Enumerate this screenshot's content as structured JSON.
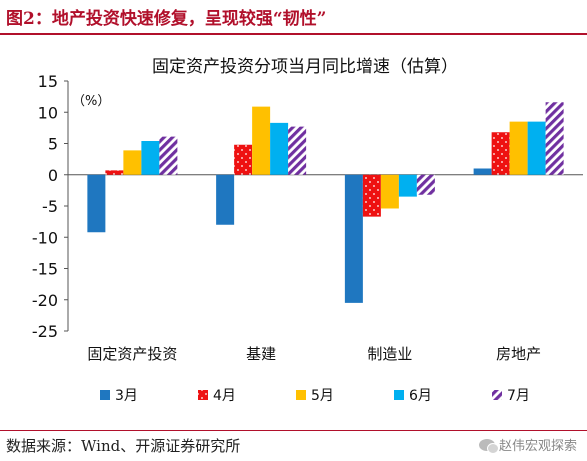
{
  "figure": {
    "title": "图2：地产投资快速修复，呈现较强“韧性”",
    "source": "数据来源：Wind、开源证券研究所",
    "watermark": "赵伟宏观探索",
    "accent_color": "#b1102b"
  },
  "chart_data": {
    "type": "bar",
    "title": "固定资产投资分项当月同比增速（估算）",
    "unit_label": "（%）",
    "categories": [
      "固定资产投资",
      "基建",
      "制造业",
      "房地产"
    ],
    "series": [
      {
        "name": "3月",
        "color": "#1f77c0",
        "pattern": "solid",
        "values": [
          -9.2,
          -8.0,
          -20.5,
          1.0
        ]
      },
      {
        "name": "4月",
        "color": "#ee1111",
        "pattern": "dots",
        "values": [
          0.7,
          4.8,
          -6.7,
          6.8
        ]
      },
      {
        "name": "5月",
        "color": "#ffc000",
        "pattern": "solid",
        "values": [
          3.9,
          10.9,
          -5.4,
          8.5
        ]
      },
      {
        "name": "6月",
        "color": "#00b0f0",
        "pattern": "solid",
        "values": [
          5.4,
          8.3,
          -3.5,
          8.5
        ]
      },
      {
        "name": "7月",
        "color": "#7030a0",
        "pattern": "diagonal-stripes",
        "values": [
          6.1,
          7.7,
          -3.2,
          11.6
        ]
      }
    ],
    "ylim": [
      -25,
      15
    ],
    "yticks": [
      15,
      10,
      5,
      0,
      -5,
      -10,
      -15,
      -20,
      -25
    ],
    "grid": false,
    "legend_position": "bottom"
  }
}
